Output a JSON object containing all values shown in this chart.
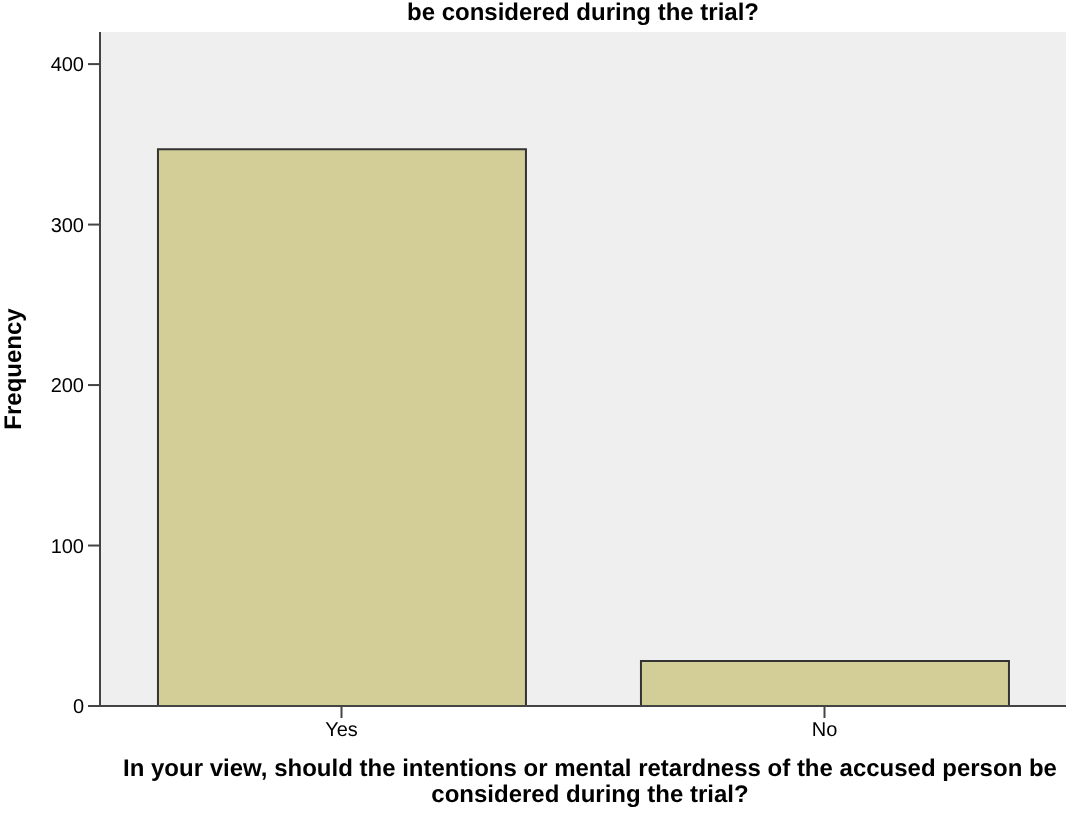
{
  "chart_data": {
    "type": "bar",
    "title": "be considered during the trial?",
    "xlabel": "In your view, should the intentions or mental retardness of the accused person be considered during the trial?",
    "ylabel": "Frequency",
    "categories": [
      "Yes",
      "No"
    ],
    "values": [
      347,
      28
    ],
    "color": "#d3ce97",
    "ylim": [
      0,
      420
    ],
    "yticks": [
      0,
      100,
      200,
      300,
      400
    ],
    "grid": false
  }
}
